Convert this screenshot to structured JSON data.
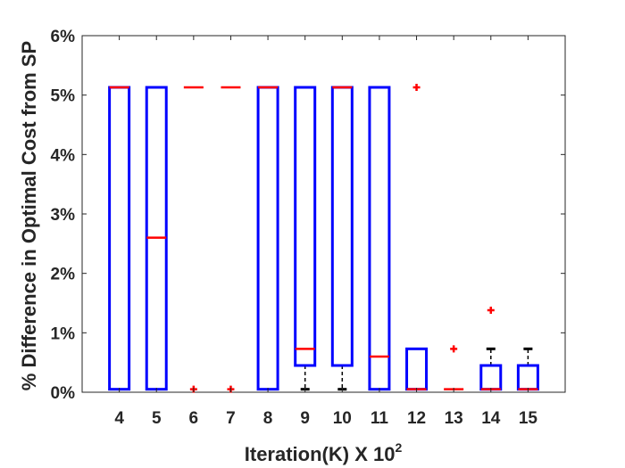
{
  "chart_data": {
    "type": "box",
    "xlabel": "Iteration(K) X 10",
    "xlabel_superscript": "2",
    "ylabel": "% Difference in Optimal Cost from SP",
    "ylim": [
      0,
      6
    ],
    "grid": false,
    "legend": "none",
    "yticks": [
      0,
      1,
      2,
      3,
      4,
      5,
      6
    ],
    "ytick_labels": [
      "0%",
      "1%",
      "2%",
      "3%",
      "4%",
      "5%",
      "6%"
    ],
    "categories": [
      "4",
      "5",
      "6",
      "7",
      "8",
      "9",
      "10",
      "11",
      "12",
      "13",
      "14",
      "15"
    ],
    "boxes": [
      {
        "q1": 0.05,
        "median": 5.13,
        "q3": 5.13,
        "whisker_low": 0.05,
        "whisker_high": 5.13,
        "outliers": []
      },
      {
        "q1": 0.05,
        "median": 2.6,
        "q3": 5.13,
        "whisker_low": 0.05,
        "whisker_high": 5.13,
        "outliers": []
      },
      {
        "q1": 5.13,
        "median": 5.13,
        "q3": 5.13,
        "whisker_low": 5.13,
        "whisker_high": 5.13,
        "outliers": [
          0.05
        ]
      },
      {
        "q1": 5.13,
        "median": 5.13,
        "q3": 5.13,
        "whisker_low": 5.13,
        "whisker_high": 5.13,
        "outliers": [
          0.05
        ]
      },
      {
        "q1": 0.05,
        "median": 5.13,
        "q3": 5.13,
        "whisker_low": 0.05,
        "whisker_high": 5.13,
        "outliers": []
      },
      {
        "q1": 0.45,
        "median": 0.73,
        "q3": 5.13,
        "whisker_low": 0.05,
        "whisker_high": 5.13,
        "outliers": []
      },
      {
        "q1": 0.45,
        "median": 5.13,
        "q3": 5.13,
        "whisker_low": 0.05,
        "whisker_high": 5.13,
        "outliers": []
      },
      {
        "q1": 0.05,
        "median": 0.6,
        "q3": 5.13,
        "whisker_low": 0.05,
        "whisker_high": 5.13,
        "outliers": []
      },
      {
        "q1": 0.05,
        "median": 0.05,
        "q3": 0.73,
        "whisker_low": 0.05,
        "whisker_high": 0.73,
        "outliers": [
          5.13
        ]
      },
      {
        "q1": 0.05,
        "median": 0.05,
        "q3": 0.05,
        "whisker_low": 0.05,
        "whisker_high": 0.05,
        "outliers": [
          0.73
        ]
      },
      {
        "q1": 0.05,
        "median": 0.05,
        "q3": 0.45,
        "whisker_low": 0.05,
        "whisker_high": 0.73,
        "outliers": [
          1.38
        ]
      },
      {
        "q1": 0.05,
        "median": 0.05,
        "q3": 0.45,
        "whisker_low": 0.05,
        "whisker_high": 0.73,
        "outliers": []
      }
    ],
    "colors": {
      "box": "#0000ff",
      "median": "#ff0000",
      "outlier": "#ff0000",
      "whisker": "#000000",
      "axis": "#262626"
    }
  }
}
